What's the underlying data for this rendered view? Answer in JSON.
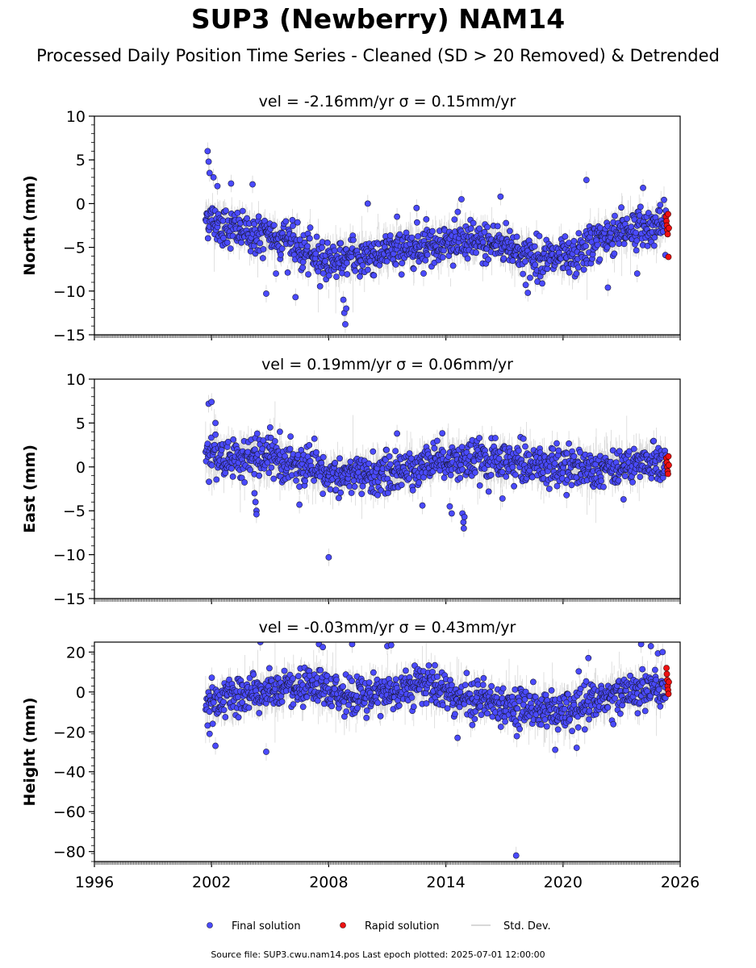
{
  "page": {
    "title": "SUP3 (Newberry) NAM14",
    "subtitle": "Processed Daily Position Time Series - Cleaned (SD > 20 Removed) & Detrended",
    "footer": "Source file: SUP3.cwu.nam14.pos  Last epoch plotted: 2025-07-01 12:00:00"
  },
  "chart_data": {
    "type": "scatter",
    "x_axis": {
      "lim": [
        1996,
        2026
      ],
      "ticks": [
        1996,
        2002,
        2008,
        2014,
        2020,
        2026
      ],
      "tick_labels": [
        "1996",
        "2002",
        "2008",
        "2014",
        "2020",
        "2026"
      ]
    },
    "legend": {
      "placement": "bottom-center",
      "entries": [
        {
          "label": "Final solution",
          "color": "#4a4aff"
        },
        {
          "label": "Rapid solution",
          "color": "#ee1111"
        },
        {
          "label": "Std. Dev.",
          "color": "#cccccc"
        }
      ]
    },
    "colors": {
      "final": "#4a4aff",
      "rapid": "#ee1111",
      "stddev": "#b0b0b0",
      "edge": "#1a1a3a"
    },
    "panels": [
      {
        "component": "North",
        "title": "vel = -2.16mm/yr   σ = 0.15mm/yr",
        "ylabel": "North (mm)",
        "ylim": [
          -15,
          10
        ],
        "yticks": [
          -15,
          -10,
          -5,
          0,
          5,
          10
        ],
        "ytick_labels": [
          "−15",
          "−10",
          "−5",
          "0",
          "5",
          "10"
        ],
        "trend": [
          [
            2001.7,
            -1.5
          ],
          [
            2002.5,
            -2.5
          ],
          [
            2004.0,
            -3.5
          ],
          [
            2006.0,
            -4.0
          ],
          [
            2006.5,
            -5.5
          ],
          [
            2008.0,
            -6.5
          ],
          [
            2010.0,
            -6.0
          ],
          [
            2012.0,
            -5.0
          ],
          [
            2014.0,
            -4.5
          ],
          [
            2017.0,
            -4.5
          ],
          [
            2018.0,
            -6.0
          ],
          [
            2020.5,
            -6.5
          ],
          [
            2021.5,
            -4.5
          ],
          [
            2023.0,
            -3.0
          ],
          [
            2025.3,
            -2.5
          ]
        ],
        "final_outliers": [
          [
            2001.8,
            6.0
          ],
          [
            2001.85,
            4.8
          ],
          [
            2001.9,
            3.5
          ],
          [
            2002.1,
            3.0
          ],
          [
            2002.3,
            2.0
          ],
          [
            2003.0,
            2.3
          ],
          [
            2004.1,
            2.2
          ],
          [
            2004.8,
            -10.3
          ],
          [
            2005.3,
            -8.0
          ],
          [
            2006.3,
            -10.7
          ],
          [
            2008.75,
            -11.0
          ],
          [
            2008.8,
            -12.5
          ],
          [
            2008.85,
            -13.8
          ],
          [
            2008.9,
            -12.0
          ],
          [
            2010.0,
            0.0
          ],
          [
            2011.5,
            -1.5
          ],
          [
            2012.5,
            -0.5
          ],
          [
            2013.0,
            -1.8
          ],
          [
            2014.8,
            0.5
          ],
          [
            2016.8,
            0.8
          ],
          [
            2018.2,
            -10.2
          ],
          [
            2021.2,
            2.7
          ],
          [
            2022.3,
            -9.6
          ],
          [
            2024.1,
            1.8
          ],
          [
            2023.8,
            -8.0
          ]
        ],
        "rapid": [
          [
            2025.28,
            -1.5
          ],
          [
            2025.3,
            -2.0
          ],
          [
            2025.32,
            -2.5
          ],
          [
            2025.34,
            -3.0
          ],
          [
            2025.36,
            -3.5
          ],
          [
            2025.38,
            -1.2
          ],
          [
            2025.4,
            -6.1
          ],
          [
            2025.42,
            -2.8
          ]
        ]
      },
      {
        "component": "East",
        "title": "vel = 0.19mm/yr   σ = 0.06mm/yr",
        "ylabel": "East (mm)",
        "ylim": [
          -15,
          10
        ],
        "yticks": [
          -15,
          -10,
          -5,
          0,
          5,
          10
        ],
        "ytick_labels": [
          "−15",
          "−10",
          "−5",
          "0",
          "5",
          "10"
        ],
        "trend": [
          [
            2001.7,
            1.5
          ],
          [
            2003.0,
            1.0
          ],
          [
            2005.0,
            1.0
          ],
          [
            2006.5,
            0.0
          ],
          [
            2008.0,
            -1.0
          ],
          [
            2010.0,
            -1.0
          ],
          [
            2012.0,
            -0.5
          ],
          [
            2013.5,
            1.0
          ],
          [
            2016.0,
            0.5
          ],
          [
            2018.0,
            0.5
          ],
          [
            2020.0,
            0.0
          ],
          [
            2022.0,
            0.0
          ],
          [
            2025.3,
            0.5
          ]
        ],
        "final_outliers": [
          [
            2001.85,
            7.2
          ],
          [
            2002.0,
            7.4
          ],
          [
            2002.2,
            5.0
          ],
          [
            2004.2,
            -3.0
          ],
          [
            2004.25,
            -4.0
          ],
          [
            2004.3,
            -5.0
          ],
          [
            2004.3,
            -5.4
          ],
          [
            2005.0,
            4.5
          ],
          [
            2005.5,
            4.0
          ],
          [
            2006.5,
            -4.3
          ],
          [
            2008.0,
            -10.3
          ],
          [
            2011.5,
            3.8
          ],
          [
            2012.8,
            -4.4
          ],
          [
            2014.2,
            -4.5
          ],
          [
            2014.3,
            -5.3
          ],
          [
            2014.85,
            -5.3
          ],
          [
            2014.9,
            -6.3
          ],
          [
            2014.92,
            -7.0
          ],
          [
            2014.95,
            -5.7
          ],
          [
            2016.9,
            -3.6
          ],
          [
            2019.3,
            -2.5
          ],
          [
            2023.1,
            -3.7
          ]
        ],
        "rapid": [
          [
            2025.3,
            1.0
          ],
          [
            2025.32,
            0.5
          ],
          [
            2025.34,
            0.0
          ],
          [
            2025.36,
            -0.5
          ],
          [
            2025.38,
            -0.8
          ],
          [
            2025.4,
            1.2
          ],
          [
            2025.42,
            0.2
          ]
        ]
      },
      {
        "component": "Height",
        "title": "vel = -0.03mm/yr   σ = 0.43mm/yr",
        "ylabel": "Height (mm)",
        "ylim": [
          -85,
          25
        ],
        "yticks": [
          -80,
          -60,
          -40,
          -20,
          0,
          20
        ],
        "ytick_labels": [
          "−80",
          "−60",
          "−40",
          "−20",
          "0",
          "20"
        ],
        "trend": [
          [
            2001.7,
            -5.0
          ],
          [
            2003.0,
            -3.0
          ],
          [
            2005.0,
            0.0
          ],
          [
            2007.0,
            2.0
          ],
          [
            2009.0,
            -2.0
          ],
          [
            2011.0,
            0.0
          ],
          [
            2013.0,
            5.0
          ],
          [
            2014.5,
            -2.0
          ],
          [
            2016.0,
            -4.0
          ],
          [
            2018.0,
            -8.0
          ],
          [
            2020.0,
            -10.0
          ],
          [
            2021.5,
            -5.0
          ],
          [
            2023.0,
            0.0
          ],
          [
            2025.3,
            2.0
          ]
        ],
        "final_outliers": [
          [
            2001.9,
            -21.0
          ],
          [
            2002.2,
            -27.0
          ],
          [
            2004.5,
            25.0
          ],
          [
            2004.8,
            -30.0
          ],
          [
            2007.5,
            24.0
          ],
          [
            2007.7,
            22.5
          ],
          [
            2009.2,
            24.0
          ],
          [
            2011.0,
            23.0
          ],
          [
            2011.2,
            23.5
          ],
          [
            2014.6,
            -23.0
          ],
          [
            2017.6,
            -82.0
          ],
          [
            2019.6,
            -29.0
          ],
          [
            2020.7,
            -28.0
          ],
          [
            2021.3,
            17.0
          ],
          [
            2024.0,
            24.0
          ],
          [
            2024.5,
            23.0
          ],
          [
            2025.1,
            20.0
          ]
        ],
        "rapid": [
          [
            2025.3,
            12.0
          ],
          [
            2025.32,
            9.0
          ],
          [
            2025.34,
            6.0
          ],
          [
            2025.36,
            3.0
          ],
          [
            2025.38,
            1.0
          ],
          [
            2025.4,
            -1.0
          ],
          [
            2025.42,
            5.0
          ]
        ]
      }
    ]
  }
}
